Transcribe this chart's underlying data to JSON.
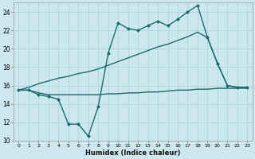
{
  "xlabel": "Humidex (Indice chaleur)",
  "bg_color": "#cce8ee",
  "grid_color": "#aed4db",
  "line_color": "#1a6b6b",
  "xlim": [
    -0.5,
    23.5
  ],
  "ylim": [
    10,
    25
  ],
  "xticks": [
    0,
    1,
    2,
    3,
    4,
    5,
    6,
    7,
    8,
    9,
    10,
    11,
    12,
    13,
    14,
    15,
    16,
    17,
    18,
    19,
    20,
    21,
    22,
    23
  ],
  "yticks": [
    10,
    12,
    14,
    16,
    18,
    20,
    22,
    24
  ],
  "series": [
    {
      "x": [
        0,
        1,
        2,
        3,
        4,
        5,
        6,
        7,
        8,
        9,
        10,
        11,
        12,
        13,
        14,
        15,
        16,
        17,
        18,
        19,
        20,
        21,
        22,
        23
      ],
      "y": [
        15.5,
        15.5,
        15.0,
        14.8,
        14.5,
        11.8,
        11.8,
        10.5,
        13.7,
        19.5,
        22.8,
        22.2,
        22.0,
        22.5,
        23.0,
        22.5,
        23.2,
        24.0,
        24.7,
        21.2,
        18.4,
        16.0,
        15.8,
        15.8
      ],
      "marker": "D",
      "markersize": 2.0,
      "linewidth": 1.0
    },
    {
      "x": [
        0,
        1,
        2,
        3,
        4,
        5,
        6,
        7,
        8,
        9,
        10,
        11,
        12,
        13,
        14,
        15,
        16,
        17,
        18,
        19,
        20,
        21,
        22,
        23
      ],
      "y": [
        15.5,
        15.8,
        16.2,
        16.5,
        16.8,
        17.0,
        17.3,
        17.5,
        17.8,
        18.2,
        18.6,
        19.0,
        19.4,
        19.8,
        20.2,
        20.5,
        20.9,
        21.3,
        21.8,
        21.2,
        18.4,
        16.0,
        15.8,
        15.8
      ],
      "marker": null,
      "markersize": 0,
      "linewidth": 1.0
    },
    {
      "x": [
        0,
        1,
        2,
        3,
        4,
        5,
        6,
        7,
        8,
        9,
        10,
        11,
        12,
        13,
        14,
        15,
        16,
        17,
        18,
        19,
        20,
        21,
        22,
        23
      ],
      "y": [
        15.5,
        15.5,
        15.2,
        15.0,
        15.0,
        15.0,
        15.0,
        15.0,
        15.0,
        15.1,
        15.1,
        15.2,
        15.2,
        15.3,
        15.3,
        15.4,
        15.5,
        15.5,
        15.6,
        15.6,
        15.7,
        15.7,
        15.7,
        15.7
      ],
      "marker": null,
      "markersize": 0,
      "linewidth": 1.0
    }
  ]
}
